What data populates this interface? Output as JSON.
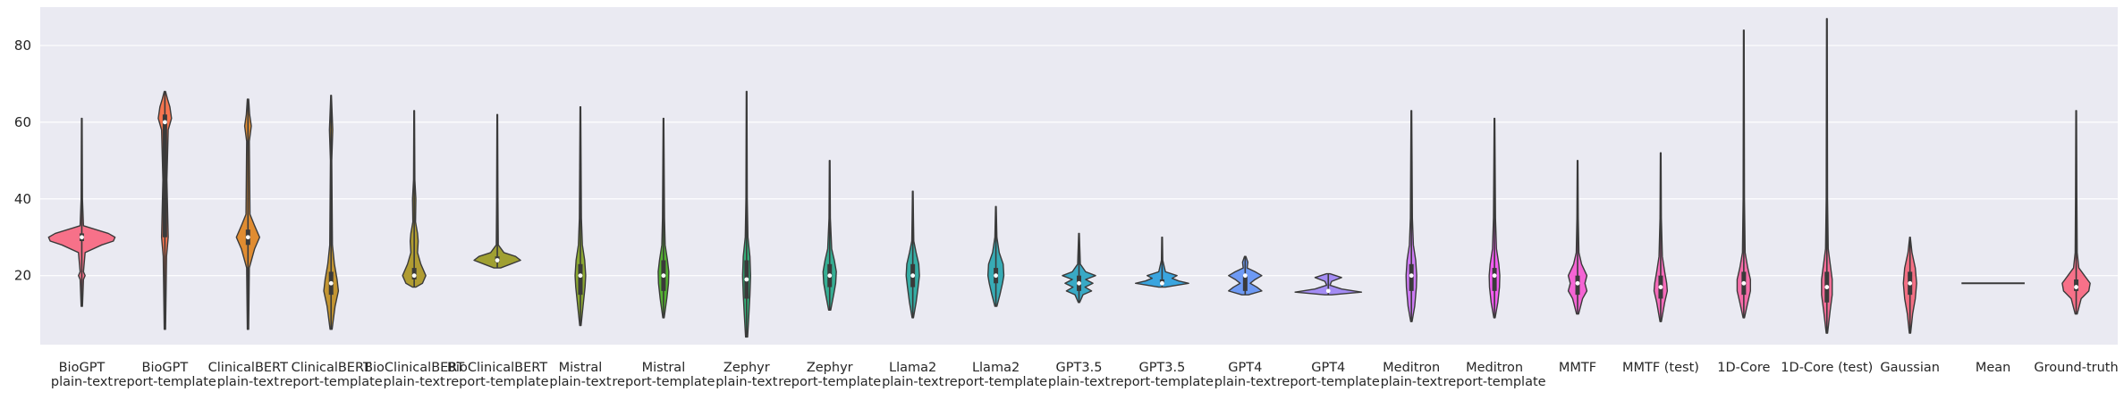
{
  "chart_data": {
    "type": "violin",
    "title": "",
    "xlabel": "",
    "ylabel": "",
    "ylim": [
      2,
      90
    ],
    "yticks": [
      20,
      40,
      60,
      80
    ],
    "grid": true,
    "categories": [
      {
        "label": [
          "BioGPT",
          "plain-text"
        ],
        "color": "#f77189",
        "min": 12,
        "max": 61,
        "median": 30,
        "q1": 29,
        "q3": 31,
        "profile": [
          [
            12,
            0.02
          ],
          [
            19,
            0.05
          ],
          [
            20,
            0.1
          ],
          [
            21,
            0.05
          ],
          [
            26,
            0.1
          ],
          [
            28,
            0.6
          ],
          [
            29,
            0.95
          ],
          [
            30,
            1.0
          ],
          [
            31,
            0.8
          ],
          [
            33,
            0.05
          ],
          [
            40,
            0.02
          ],
          [
            61,
            0.01
          ]
        ]
      },
      {
        "label": [
          "BioGPT",
          "report-template"
        ],
        "color": "#f7754f",
        "min": 6,
        "max": 68,
        "median": 60,
        "q1": 30,
        "q3": 62,
        "profile": [
          [
            6,
            0.02
          ],
          [
            25,
            0.05
          ],
          [
            30,
            0.1
          ],
          [
            45,
            0.06
          ],
          [
            58,
            0.1
          ],
          [
            61,
            0.2
          ],
          [
            64,
            0.15
          ],
          [
            66,
            0.08
          ],
          [
            68,
            0.02
          ]
        ]
      },
      {
        "label": [
          "ClinicalBERT",
          "plain-text"
        ],
        "color": "#e08c31",
        "min": 6,
        "max": 66,
        "median": 30,
        "q1": 28,
        "q3": 32,
        "profile": [
          [
            6,
            0.02
          ],
          [
            22,
            0.04
          ],
          [
            27,
            0.2
          ],
          [
            30,
            0.35
          ],
          [
            33,
            0.2
          ],
          [
            36,
            0.06
          ],
          [
            55,
            0.04
          ],
          [
            59,
            0.1
          ],
          [
            62,
            0.05
          ],
          [
            66,
            0.02
          ]
        ]
      },
      {
        "label": [
          "ClinicalBERT",
          "report-template"
        ],
        "color": "#c39532",
        "min": 6,
        "max": 67,
        "median": 18,
        "q1": 15,
        "q3": 21,
        "profile": [
          [
            6,
            0.03
          ],
          [
            12,
            0.12
          ],
          [
            16,
            0.22
          ],
          [
            19,
            0.18
          ],
          [
            23,
            0.1
          ],
          [
            28,
            0.04
          ],
          [
            50,
            0.02
          ],
          [
            58,
            0.05
          ],
          [
            67,
            0.01
          ]
        ]
      },
      {
        "label": [
          "BioClinicalBERT",
          "plain-text"
        ],
        "color": "#b09c32",
        "min": 17,
        "max": 63,
        "median": 20,
        "q1": 19,
        "q3": 22,
        "profile": [
          [
            17,
            0.05
          ],
          [
            18,
            0.25
          ],
          [
            20,
            0.35
          ],
          [
            23,
            0.2
          ],
          [
            26,
            0.1
          ],
          [
            29,
            0.12
          ],
          [
            31,
            0.1
          ],
          [
            34,
            0.04
          ],
          [
            40,
            0.05
          ],
          [
            45,
            0.02
          ],
          [
            63,
            0.01
          ]
        ]
      },
      {
        "label": [
          "BioClinicalBERT",
          "report-template"
        ],
        "color": "#a0a032",
        "min": 22,
        "max": 62,
        "median": 24,
        "q1": 23.5,
        "q3": 25,
        "profile": [
          [
            22,
            0.1
          ],
          [
            23,
            0.4
          ],
          [
            24,
            0.7
          ],
          [
            25,
            0.55
          ],
          [
            26,
            0.2
          ],
          [
            28,
            0.03
          ],
          [
            40,
            0.02
          ],
          [
            62,
            0.01
          ]
        ]
      },
      {
        "label": [
          "Mistral",
          "plain-text"
        ],
        "color": "#8ba731",
        "min": 7,
        "max": 64,
        "median": 20,
        "q1": 15,
        "q3": 23,
        "profile": [
          [
            7,
            0.02
          ],
          [
            12,
            0.08
          ],
          [
            17,
            0.14
          ],
          [
            20,
            0.16
          ],
          [
            24,
            0.13
          ],
          [
            28,
            0.06
          ],
          [
            35,
            0.03
          ],
          [
            50,
            0.02
          ],
          [
            64,
            0.01
          ]
        ]
      },
      {
        "label": [
          "Mistral",
          "report-template"
        ],
        "color": "#54b131",
        "min": 9,
        "max": 61,
        "median": 20,
        "q1": 16,
        "q3": 24,
        "profile": [
          [
            9,
            0.02
          ],
          [
            14,
            0.1
          ],
          [
            18,
            0.15
          ],
          [
            21,
            0.16
          ],
          [
            24,
            0.12
          ],
          [
            28,
            0.05
          ],
          [
            35,
            0.03
          ],
          [
            61,
            0.01
          ]
        ]
      },
      {
        "label": [
          "Zephyr",
          "plain-text"
        ],
        "color": "#33b07a",
        "min": 4,
        "max": 68,
        "median": 19,
        "q1": 14,
        "q3": 24,
        "profile": [
          [
            4,
            0.03
          ],
          [
            10,
            0.07
          ],
          [
            15,
            0.1
          ],
          [
            20,
            0.12
          ],
          [
            25,
            0.1
          ],
          [
            30,
            0.04
          ],
          [
            40,
            0.02
          ],
          [
            68,
            0.01
          ]
        ]
      },
      {
        "label": [
          "Zephyr",
          "report-template"
        ],
        "color": "#35ae93",
        "min": 11,
        "max": 50,
        "median": 20,
        "q1": 17,
        "q3": 23,
        "profile": [
          [
            11,
            0.03
          ],
          [
            15,
            0.12
          ],
          [
            18,
            0.18
          ],
          [
            21,
            0.2
          ],
          [
            24,
            0.14
          ],
          [
            27,
            0.06
          ],
          [
            35,
            0.02
          ],
          [
            50,
            0.01
          ]
        ]
      },
      {
        "label": [
          "Llama2",
          "plain-text"
        ],
        "color": "#36ada4",
        "min": 9,
        "max": 42,
        "median": 20,
        "q1": 17,
        "q3": 23,
        "profile": [
          [
            9,
            0.02
          ],
          [
            13,
            0.1
          ],
          [
            17,
            0.16
          ],
          [
            20,
            0.2
          ],
          [
            23,
            0.18
          ],
          [
            26,
            0.1
          ],
          [
            29,
            0.03
          ],
          [
            35,
            0.02
          ],
          [
            42,
            0.01
          ]
        ]
      },
      {
        "label": [
          "Llama2",
          "report-template"
        ],
        "color": "#37abb5",
        "min": 12,
        "max": 38,
        "median": 20,
        "q1": 18,
        "q3": 22,
        "profile": [
          [
            12,
            0.03
          ],
          [
            15,
            0.12
          ],
          [
            18,
            0.2
          ],
          [
            20,
            0.24
          ],
          [
            23,
            0.22
          ],
          [
            26,
            0.1
          ],
          [
            30,
            0.03
          ],
          [
            38,
            0.01
          ]
        ]
      },
      {
        "label": [
          "GPT3.5",
          "plain-text"
        ],
        "color": "#38a9c5",
        "min": 13,
        "max": 31,
        "median": 18,
        "q1": 16,
        "q3": 20,
        "profile": [
          [
            13,
            0.02
          ],
          [
            15,
            0.12
          ],
          [
            16,
            0.38
          ],
          [
            17,
            0.18
          ],
          [
            18,
            0.42
          ],
          [
            19,
            0.2
          ],
          [
            20,
            0.5
          ],
          [
            21,
            0.2
          ],
          [
            23,
            0.04
          ],
          [
            31,
            0.01
          ]
        ]
      },
      {
        "label": [
          "GPT3.5",
          "report-template"
        ],
        "color": "#3aa5df",
        "min": 17,
        "max": 30,
        "median": 18,
        "q1": 18,
        "q3": 19,
        "profile": [
          [
            17,
            0.1
          ],
          [
            18,
            0.8
          ],
          [
            18.6,
            0.5
          ],
          [
            19.3,
            0.3
          ],
          [
            20,
            0.45
          ],
          [
            21,
            0.1
          ],
          [
            24,
            0.02
          ],
          [
            30,
            0.01
          ]
        ]
      },
      {
        "label": [
          "GPT4",
          "plain-text"
        ],
        "color": "#6e9af4",
        "min": 15,
        "max": 25,
        "median": 20,
        "q1": 16,
        "q3": 20,
        "profile": [
          [
            15,
            0.1
          ],
          [
            16,
            0.5
          ],
          [
            17,
            0.35
          ],
          [
            18,
            0.15
          ],
          [
            19,
            0.3
          ],
          [
            20,
            0.5
          ],
          [
            21,
            0.3
          ],
          [
            22,
            0.06
          ],
          [
            23.5,
            0.08
          ],
          [
            25,
            0.02
          ]
        ]
      },
      {
        "label": [
          "GPT4",
          "report-template"
        ],
        "color": "#a48cf4",
        "min": 15,
        "max": 20.5,
        "median": 16,
        "q1": 16,
        "q3": 16,
        "profile": [
          [
            15,
            0.1
          ],
          [
            15.7,
            1.0
          ],
          [
            16.5,
            0.4
          ],
          [
            17.5,
            0.05
          ],
          [
            18.5,
            0.1
          ],
          [
            19.5,
            0.4
          ],
          [
            20.5,
            0.05
          ]
        ]
      },
      {
        "label": [
          "Meditron",
          "plain-text"
        ],
        "color": "#cc7af4",
        "min": 8,
        "max": 63,
        "median": 20,
        "q1": 16,
        "q3": 23,
        "profile": [
          [
            8,
            0.02
          ],
          [
            12,
            0.1
          ],
          [
            17,
            0.15
          ],
          [
            20,
            0.16
          ],
          [
            24,
            0.13
          ],
          [
            28,
            0.06
          ],
          [
            35,
            0.03
          ],
          [
            50,
            0.02
          ],
          [
            63,
            0.01
          ]
        ]
      },
      {
        "label": [
          "Meditron",
          "report-template"
        ],
        "color": "#f45cf2",
        "min": 9,
        "max": 61,
        "median": 20,
        "q1": 16,
        "q3": 22,
        "profile": [
          [
            9,
            0.02
          ],
          [
            13,
            0.1
          ],
          [
            17,
            0.15
          ],
          [
            20,
            0.16
          ],
          [
            23,
            0.13
          ],
          [
            27,
            0.06
          ],
          [
            35,
            0.03
          ],
          [
            61,
            0.01
          ]
        ]
      },
      {
        "label": [
          "MMTF",
          ""
        ],
        "color": "#f564d4",
        "min": 10,
        "max": 50,
        "median": 18,
        "q1": 15,
        "q3": 20,
        "profile": [
          [
            10,
            0.03
          ],
          [
            14,
            0.15
          ],
          [
            16,
            0.28
          ],
          [
            18,
            0.22
          ],
          [
            20,
            0.28
          ],
          [
            23,
            0.12
          ],
          [
            26,
            0.04
          ],
          [
            35,
            0.02
          ],
          [
            50,
            0.01
          ]
        ]
      },
      {
        "label": [
          "MMTF (test)",
          ""
        ],
        "color": "#f66bba",
        "min": 8,
        "max": 52,
        "median": 17,
        "q1": 14,
        "q3": 20,
        "profile": [
          [
            8,
            0.02
          ],
          [
            13,
            0.12
          ],
          [
            16,
            0.2
          ],
          [
            18,
            0.18
          ],
          [
            21,
            0.12
          ],
          [
            25,
            0.05
          ],
          [
            35,
            0.02
          ],
          [
            52,
            0.01
          ]
        ]
      },
      {
        "label": [
          "1D-Core",
          ""
        ],
        "color": "#f66da9",
        "min": 9,
        "max": 84,
        "median": 18,
        "q1": 15,
        "q3": 21,
        "profile": [
          [
            9,
            0.02
          ],
          [
            13,
            0.12
          ],
          [
            16,
            0.2
          ],
          [
            19,
            0.2
          ],
          [
            22,
            0.12
          ],
          [
            26,
            0.04
          ],
          [
            40,
            0.02
          ],
          [
            84,
            0.01
          ]
        ]
      },
      {
        "label": [
          "1D-Core (test)",
          ""
        ],
        "color": "#f56e98",
        "min": 5,
        "max": 87,
        "median": 17,
        "q1": 13,
        "q3": 21,
        "profile": [
          [
            5,
            0.02
          ],
          [
            11,
            0.1
          ],
          [
            15,
            0.16
          ],
          [
            19,
            0.16
          ],
          [
            23,
            0.1
          ],
          [
            27,
            0.04
          ],
          [
            40,
            0.02
          ],
          [
            87,
            0.01
          ]
        ]
      },
      {
        "label": [
          "Gaussian",
          ""
        ],
        "color": "#f47084",
        "min": 5,
        "max": 30,
        "median": 18,
        "q1": 15,
        "q3": 21,
        "profile": [
          [
            5,
            0.02
          ],
          [
            10,
            0.08
          ],
          [
            14,
            0.16
          ],
          [
            18,
            0.2
          ],
          [
            22,
            0.16
          ],
          [
            26,
            0.06
          ],
          [
            30,
            0.01
          ]
        ]
      },
      {
        "label": [
          "Mean",
          ""
        ],
        "color": "#f7754f",
        "min": 18,
        "max": 18,
        "median": 18,
        "q1": 18,
        "q3": 18,
        "profile": [
          [
            17.97,
            1.0
          ],
          [
            18.03,
            1.0
          ]
        ]
      },
      {
        "label": [
          "Ground-truth",
          ""
        ],
        "color": "#f77189",
        "min": 10,
        "max": 63,
        "median": 17,
        "q1": 16,
        "q3": 19,
        "profile": [
          [
            10,
            0.03
          ],
          [
            14,
            0.15
          ],
          [
            16,
            0.38
          ],
          [
            18,
            0.42
          ],
          [
            20,
            0.25
          ],
          [
            22,
            0.08
          ],
          [
            26,
            0.03
          ],
          [
            40,
            0.02
          ],
          [
            63,
            0.01
          ]
        ]
      }
    ]
  }
}
